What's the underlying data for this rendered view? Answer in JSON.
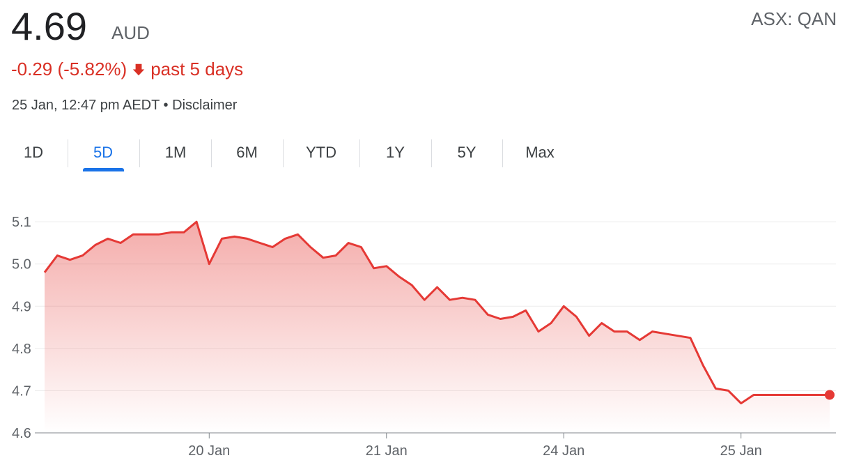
{
  "quote": {
    "price": "4.69",
    "currency": "AUD",
    "ticker": "ASX: QAN",
    "change": "-0.29 (-5.82%)",
    "period": "past 5 days",
    "timestamp": "25 Jan, 12:47 pm AEDT",
    "separator": "•",
    "disclaimer": "Disclaimer"
  },
  "tabs": [
    {
      "label": "1D",
      "active": false
    },
    {
      "label": "5D",
      "active": true
    },
    {
      "label": "1M",
      "active": false
    },
    {
      "label": "6M",
      "active": false
    },
    {
      "label": "YTD",
      "active": false
    },
    {
      "label": "1Y",
      "active": false
    },
    {
      "label": "5Y",
      "active": false
    },
    {
      "label": "Max",
      "active": false
    }
  ],
  "colors": {
    "line": "#e53935",
    "negative_text": "#d93025",
    "active_tab": "#1a73e8"
  },
  "icons": {
    "change_direction": "arrow-down-icon"
  },
  "chart_data": {
    "type": "area",
    "title": "",
    "xlabel": "",
    "ylabel": "",
    "ylim": [
      4.6,
      5.13
    ],
    "y_ticks": [
      "5.1",
      "5.0",
      "4.9",
      "4.8",
      "4.7",
      "4.6"
    ],
    "y_tick_values": [
      5.1,
      5.0,
      4.9,
      4.8,
      4.7,
      4.6
    ],
    "x_ticks": [
      "20 Jan",
      "21 Jan",
      "24 Jan",
      "25 Jan"
    ],
    "x_tick_positions": [
      13,
      27,
      41,
      55
    ],
    "x_range": [
      0,
      62.5
    ],
    "grid": true,
    "last_point_marker": true,
    "series": [
      {
        "x": [
          0,
          1,
          2,
          3,
          4,
          5,
          6,
          7,
          8,
          9,
          10,
          11,
          12,
          13,
          14,
          15,
          16,
          17,
          18,
          19,
          20,
          21,
          22,
          23,
          24,
          25,
          26,
          27,
          28,
          29,
          30,
          31,
          32,
          33,
          34,
          35,
          36,
          37,
          38,
          39,
          40,
          41,
          42,
          43,
          44,
          45,
          46,
          47,
          48,
          49,
          50,
          51,
          52,
          53,
          54,
          55,
          56,
          57,
          58,
          59,
          60,
          61,
          62
        ],
        "values": [
          4.98,
          5.02,
          5.01,
          5.02,
          5.045,
          5.06,
          5.05,
          5.07,
          5.07,
          5.07,
          5.075,
          5.075,
          5.1,
          5.0,
          5.06,
          5.065,
          5.06,
          5.05,
          5.04,
          5.06,
          5.07,
          5.04,
          5.015,
          5.02,
          5.05,
          5.04,
          4.99,
          4.995,
          4.97,
          4.95,
          4.915,
          4.945,
          4.915,
          4.92,
          4.915,
          4.88,
          4.87,
          4.875,
          4.89,
          4.84,
          4.86,
          4.9,
          4.875,
          4.83,
          4.86,
          4.84,
          4.84,
          4.82,
          4.84,
          4.835,
          4.83,
          4.825,
          4.76,
          4.705,
          4.7,
          4.67,
          4.69,
          4.69,
          4.69,
          4.69,
          4.69,
          4.69,
          4.69
        ]
      }
    ]
  }
}
